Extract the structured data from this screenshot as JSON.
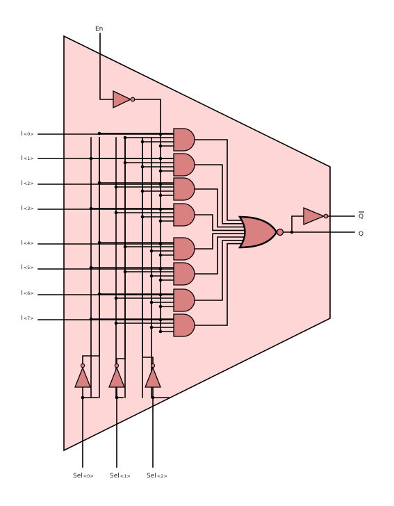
{
  "labels": {
    "enable": "En",
    "inputs": [
      {
        "main": "I",
        "sub": "<0>"
      },
      {
        "main": "I",
        "sub": "<1>"
      },
      {
        "main": "I",
        "sub": "<2>"
      },
      {
        "main": "I",
        "sub": "<3>"
      },
      {
        "main": "I",
        "sub": "<4>"
      },
      {
        "main": "I",
        "sub": "<5>"
      },
      {
        "main": "I",
        "sub": "<6>"
      },
      {
        "main": "I",
        "sub": "<7>"
      }
    ],
    "selects": [
      {
        "main": "Sel",
        "sub": "<0>"
      },
      {
        "main": "Sel",
        "sub": "<1>"
      },
      {
        "main": "Sel",
        "sub": "<2>"
      }
    ],
    "q": "Q",
    "q_bar": "Q"
  },
  "colors": {
    "body_fill": "#ffd6d6",
    "gate_fill": "#d98080",
    "wire": "#000000",
    "label": "#222222"
  }
}
